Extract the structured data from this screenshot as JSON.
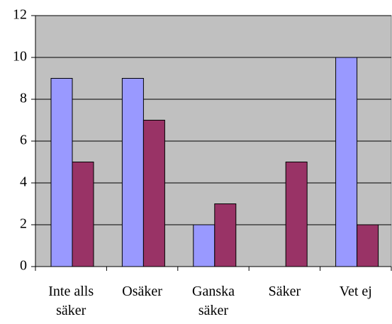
{
  "chart_data": {
    "type": "bar",
    "categories": [
      "Inte alls säker",
      "Osäker",
      "Ganska säker",
      "Säker",
      "Vet ej"
    ],
    "series": [
      {
        "color": "#9999ff",
        "values": [
          9,
          9,
          2,
          null,
          10
        ]
      },
      {
        "color": "#993366",
        "values": [
          5,
          7,
          3,
          5,
          2
        ]
      }
    ],
    "ylim": [
      0,
      12
    ],
    "yticks": [
      0,
      2,
      4,
      6,
      8,
      10,
      12
    ],
    "grid": true,
    "plot_background": "#c0c0c0"
  }
}
